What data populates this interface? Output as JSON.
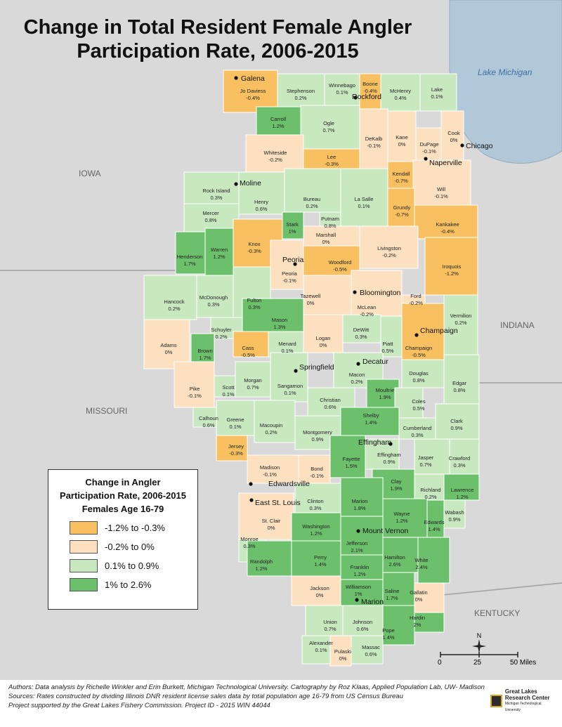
{
  "title": "Change in Total Resident Female Angler Participation Rate, 2006-2015",
  "title_lines": [
    "Change in Total Resident Female Angler",
    "Participation Rate, 2006-2015"
  ],
  "water_label": "Lake Michigan",
  "states": {
    "iowa": "IOWA",
    "missouri": "MISSOURI",
    "indiana": "INDIANA",
    "kentucky": "KENTUCKY"
  },
  "colors": {
    "dark_orange": "#f8c060",
    "light_orange": "#fce0c0",
    "light_green": "#c8e8c0",
    "dark_green": "#6cc06c",
    "water": "#b0c8d8",
    "background": "#d9d9d9"
  },
  "legend": {
    "title_lines": [
      "Change in Angler",
      "Participation Rate, 2006-2015",
      "Females Age 16-79"
    ],
    "items": [
      {
        "label": "-1.2% to -0.3%",
        "color": "#f8c060"
      },
      {
        "label": "-0.2% to 0%",
        "color": "#fce0c0"
      },
      {
        "label": "0.1% to 0.9%",
        "color": "#c8e8c0"
      },
      {
        "label": "1% to 2.6%",
        "color": "#6cc06c"
      }
    ]
  },
  "counties": [
    {
      "name": "Jo Daviess",
      "value": "-0.4%"
    },
    {
      "name": "Stephenson",
      "value": "0.2%"
    },
    {
      "name": "Winnebago",
      "value": "0.1%"
    },
    {
      "name": "Boone",
      "value": "-0.4%"
    },
    {
      "name": "McHenry",
      "value": "0.4%"
    },
    {
      "name": "Lake",
      "value": "0.1%"
    },
    {
      "name": "Carroll",
      "value": "1.2%"
    },
    {
      "name": "Ogle",
      "value": "0.7%"
    },
    {
      "name": "DeKalb",
      "value": "-0.1%"
    },
    {
      "name": "Kane",
      "value": "0%"
    },
    {
      "name": "DuPage",
      "value": "-0.1%"
    },
    {
      "name": "Cook",
      "value": "0%"
    },
    {
      "name": "Whiteside",
      "value": "-0.2%"
    },
    {
      "name": "Lee",
      "value": "-0.3%"
    },
    {
      "name": "Kendall",
      "value": "-0.7%"
    },
    {
      "name": "Will",
      "value": "-0.1%"
    },
    {
      "name": "Rock Island",
      "value": "0.3%"
    },
    {
      "name": "Henry",
      "value": "0.6%"
    },
    {
      "name": "Bureau",
      "value": "0.2%"
    },
    {
      "name": "La Salle",
      "value": "0.1%"
    },
    {
      "name": "Grundy",
      "value": "-0.7%"
    },
    {
      "name": "Mercer",
      "value": "0.8%"
    },
    {
      "name": "Putnam",
      "value": "0.8%"
    },
    {
      "name": "Stark",
      "value": "1%"
    },
    {
      "name": "Marshall",
      "value": "0%"
    },
    {
      "name": "Kankakee",
      "value": "-0.4%"
    },
    {
      "name": "Knox",
      "value": "-0.3%"
    },
    {
      "name": "Livingston",
      "value": "-0.2%"
    },
    {
      "name": "Henderson",
      "value": "1.7%"
    },
    {
      "name": "Warren",
      "value": "1.2%"
    },
    {
      "name": "Woodford",
      "value": "-0.5%"
    },
    {
      "name": "Peoria",
      "value": "-0.1%"
    },
    {
      "name": "Iroquois",
      "value": "-1.2%"
    },
    {
      "name": "Tazewell",
      "value": "0%"
    },
    {
      "name": "Hancock",
      "value": "0.2%"
    },
    {
      "name": "McDonough",
      "value": "0.3%"
    },
    {
      "name": "Fulton",
      "value": "0.3%"
    },
    {
      "name": "McLean",
      "value": "-0.2%"
    },
    {
      "name": "Ford",
      "value": "-0.2%"
    },
    {
      "name": "Vermilion",
      "value": "0.2%"
    },
    {
      "name": "Mason",
      "value": "1.3%"
    },
    {
      "name": "Schuyler",
      "value": "0.2%"
    },
    {
      "name": "Logan",
      "value": "0%"
    },
    {
      "name": "DeWitt",
      "value": "0.3%"
    },
    {
      "name": "Piatt",
      "value": "0.5%"
    },
    {
      "name": "Champaign",
      "value": "-0.5%"
    },
    {
      "name": "Adams",
      "value": "0%"
    },
    {
      "name": "Brown",
      "value": "1.7%"
    },
    {
      "name": "Cass",
      "value": "-0.5%"
    },
    {
      "name": "Menard",
      "value": "0.1%"
    },
    {
      "name": "Macon",
      "value": "0.2%"
    },
    {
      "name": "Douglas",
      "value": "0.8%"
    },
    {
      "name": "Edgar",
      "value": "0.8%"
    },
    {
      "name": "Pike",
      "value": "-0.1%"
    },
    {
      "name": "Scott",
      "value": "0.1%"
    },
    {
      "name": "Morgan",
      "value": "0.7%"
    },
    {
      "name": "Sangamon",
      "value": "0.1%"
    },
    {
      "name": "Christian",
      "value": "0.6%"
    },
    {
      "name": "Moultrie",
      "value": "1.9%"
    },
    {
      "name": "Coles",
      "value": "0.5%"
    },
    {
      "name": "Shelby",
      "value": "1.4%"
    },
    {
      "name": "Calhoun",
      "value": "0.6%"
    },
    {
      "name": "Greene",
      "value": "0.1%"
    },
    {
      "name": "Macoupin",
      "value": "0.2%"
    },
    {
      "name": "Montgomery",
      "value": "0.9%"
    },
    {
      "name": "Cumberland",
      "value": "0.3%"
    },
    {
      "name": "Clark",
      "value": "0.9%"
    },
    {
      "name": "Jersey",
      "value": "-0.3%"
    },
    {
      "name": "Fayette",
      "value": "1.5%"
    },
    {
      "name": "Effingham",
      "value": "0.9%"
    },
    {
      "name": "Jasper",
      "value": "0.7%"
    },
    {
      "name": "Crawford",
      "value": "0.3%"
    },
    {
      "name": "Madison",
      "value": "-0.1%"
    },
    {
      "name": "Bond",
      "value": "-0.1%"
    },
    {
      "name": "Clay",
      "value": "1.9%"
    },
    {
      "name": "Richland",
      "value": "0.2%"
    },
    {
      "name": "Lawrence",
      "value": "1.2%"
    },
    {
      "name": "Clinton",
      "value": "0.3%"
    },
    {
      "name": "Marion",
      "value": "1.8%"
    },
    {
      "name": "St. Clair",
      "value": "0%"
    },
    {
      "name": "Wayne",
      "value": "1.2%"
    },
    {
      "name": "Wabash",
      "value": "0.9%"
    },
    {
      "name": "Washington",
      "value": "1.2%"
    },
    {
      "name": "Edwards",
      "value": "1.4%"
    },
    {
      "name": "Monroe",
      "value": "0.3%"
    },
    {
      "name": "Jefferson",
      "value": "2.1%"
    },
    {
      "name": "Randolph",
      "value": "1.2%"
    },
    {
      "name": "Perry",
      "value": "1.4%"
    },
    {
      "name": "Hamilton",
      "value": "2.6%"
    },
    {
      "name": "White",
      "value": "2.4%"
    },
    {
      "name": "Franklin",
      "value": "1.2%"
    },
    {
      "name": "Jackson",
      "value": "0%"
    },
    {
      "name": "Williamson",
      "value": "1%"
    },
    {
      "name": "Saline",
      "value": "1.7%"
    },
    {
      "name": "Gallatin",
      "value": "0%"
    },
    {
      "name": "Union",
      "value": "0.7%"
    },
    {
      "name": "Johnson",
      "value": "0.6%"
    },
    {
      "name": "Pope",
      "value": "1.4%"
    },
    {
      "name": "Hardin",
      "value": "2%"
    },
    {
      "name": "Alexander",
      "value": "0.1%"
    },
    {
      "name": "Pulaski",
      "value": "0%"
    },
    {
      "name": "Massac",
      "value": "0.6%"
    }
  ],
  "cities": [
    "Galena",
    "Rockford",
    "Chicago",
    "Naperville",
    "Moline",
    "Peoria",
    "Bloomington",
    "Champaign",
    "Springfield",
    "Decatur",
    "Effingham",
    "Edwardsville",
    "East St. Louis",
    "Mount Vernon",
    "Marion"
  ],
  "scale": {
    "ticks": [
      "0",
      "25",
      "50 Miles"
    ]
  },
  "compass_label": "N",
  "footer": {
    "lines": [
      "Authors: Data analysis by Richelle Winkler and Erin Burkett, Michigan Technological University. Cartography by Roz Klaas, Applied Population Lab, UW- Madison",
      "Sources: Rates constructed by dividing Illinois DNR resident license sales data by total population age 16-79 from US Census Bureau",
      "Project supported by the Great Lakes Fishery Commission. Project ID - 2015 WIN 44044"
    ],
    "logo_lines": [
      "Great Lakes",
      "Research Center",
      "Michigan Technological University"
    ]
  }
}
